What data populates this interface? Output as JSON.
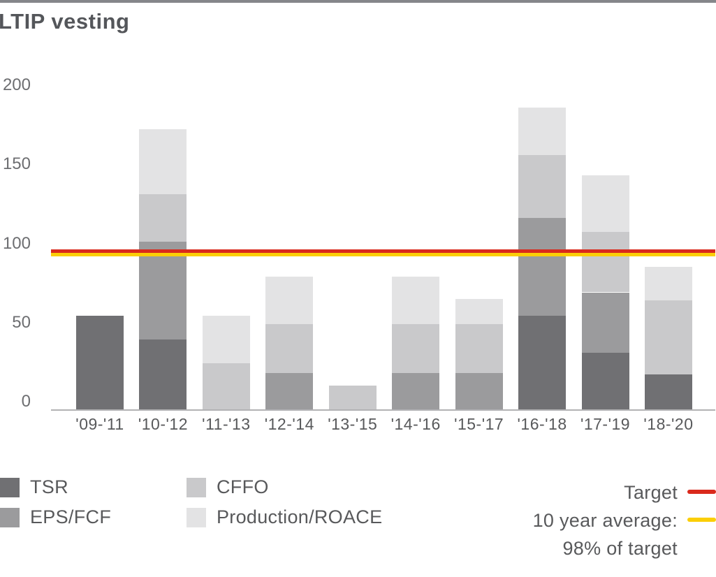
{
  "title": "LTIP vesting",
  "colors": {
    "tsr": "#707073",
    "eps_fcf": "#9b9b9d",
    "cffo": "#c9c9cb",
    "production_roace": "#e3e3e4",
    "target_line": "#da291c",
    "average_line": "#fbce07",
    "title_text": "#54565a",
    "tick_text": "#6d6e71",
    "axis": "#b2b2b4"
  },
  "chart_data": {
    "type": "bar",
    "stacked": true,
    "title": "LTIP vesting",
    "categories": [
      "'09-'11",
      "'10-'12",
      "'11-'13",
      "'12-'14",
      "'13-'15",
      "'14-'16",
      "'15-'17",
      "'16-'18",
      "'17-'19",
      "'18-'20"
    ],
    "series": [
      {
        "name": "TSR",
        "color_key": "tsr",
        "values": [
          59,
          44,
          0,
          0,
          0,
          0,
          0,
          59,
          36,
          22
        ]
      },
      {
        "name": "EPS/FCF",
        "color_key": "eps_fcf",
        "values": [
          0,
          62,
          0,
          23,
          0,
          23,
          23,
          62,
          38,
          0
        ]
      },
      {
        "name": "CFFO",
        "color_key": "cffo",
        "values": [
          0,
          30,
          29,
          31,
          15,
          31,
          31,
          40,
          38,
          47
        ]
      },
      {
        "name": "Production/ROACE",
        "color_key": "production_roace",
        "values": [
          0,
          41,
          30,
          30,
          0,
          30,
          16,
          30,
          36,
          21
        ]
      }
    ],
    "totals": [
      59,
      177,
      59,
      84,
      15,
      84,
      70,
      191,
      148,
      90
    ],
    "yticks": [
      0,
      50,
      100,
      150,
      200
    ],
    "ylim": [
      0,
      200
    ],
    "grid": false,
    "legend_position": "bottom",
    "reference_lines": [
      {
        "name": "Target",
        "value": 100,
        "color_key": "target_line"
      },
      {
        "name": "10 year average",
        "value": 98,
        "color_key": "average_line"
      }
    ]
  },
  "legend": {
    "series": [
      {
        "label": "TSR",
        "color_key": "tsr"
      },
      {
        "label": "EPS/FCF",
        "color_key": "eps_fcf"
      },
      {
        "label": "CFFO",
        "color_key": "cffo"
      },
      {
        "label": "Production/ROACE",
        "color_key": "production_roace"
      }
    ],
    "target": {
      "label": "Target",
      "color_key": "target_line"
    },
    "average": {
      "label_line1": "10 year average:",
      "label_line2": "98% of target",
      "color_key": "average_line"
    }
  }
}
